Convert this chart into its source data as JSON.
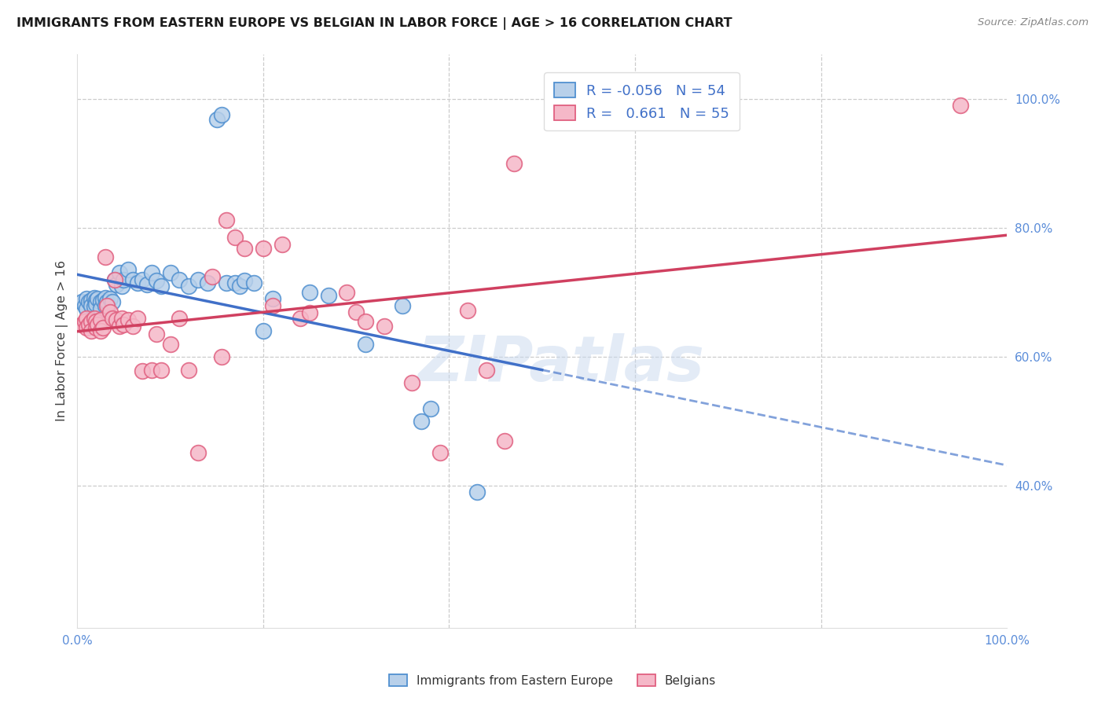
{
  "title": "IMMIGRANTS FROM EASTERN EUROPE VS BELGIAN IN LABOR FORCE | AGE > 16 CORRELATION CHART",
  "source": "Source: ZipAtlas.com",
  "ylabel": "In Labor Force | Age > 16",
  "xlim": [
    0.0,
    1.0
  ],
  "ylim": [
    0.18,
    1.07
  ],
  "xtick_positions": [
    0.0,
    0.2,
    0.4,
    0.6,
    0.8,
    1.0
  ],
  "xticklabels": [
    "0.0%",
    "",
    "",
    "",
    "",
    "100.0%"
  ],
  "right_yticks": [
    0.4,
    0.6,
    0.8,
    1.0
  ],
  "right_yticklabels": [
    "40.0%",
    "60.0%",
    "80.0%",
    "100.0%"
  ],
  "watermark": "ZIPatlas",
  "legend_blue_r": "-0.056",
  "legend_blue_n": "54",
  "legend_pink_r": "0.661",
  "legend_pink_n": "55",
  "blue_face": "#b8d0ea",
  "pink_face": "#f5b8c8",
  "blue_edge": "#5090d0",
  "pink_edge": "#e06080",
  "blue_line": "#4070c8",
  "pink_line": "#d04060",
  "blue_scatter": [
    [
      0.005,
      0.685
    ],
    [
      0.008,
      0.68
    ],
    [
      0.01,
      0.69
    ],
    [
      0.01,
      0.675
    ],
    [
      0.012,
      0.685
    ],
    [
      0.015,
      0.688
    ],
    [
      0.015,
      0.68
    ],
    [
      0.018,
      0.692
    ],
    [
      0.018,
      0.678
    ],
    [
      0.02,
      0.688
    ],
    [
      0.02,
      0.682
    ],
    [
      0.022,
      0.69
    ],
    [
      0.025,
      0.685
    ],
    [
      0.025,
      0.675
    ],
    [
      0.028,
      0.688
    ],
    [
      0.03,
      0.692
    ],
    [
      0.03,
      0.68
    ],
    [
      0.032,
      0.685
    ],
    [
      0.035,
      0.69
    ],
    [
      0.038,
      0.685
    ],
    [
      0.04,
      0.72
    ],
    [
      0.042,
      0.712
    ],
    [
      0.045,
      0.73
    ],
    [
      0.048,
      0.71
    ],
    [
      0.05,
      0.72
    ],
    [
      0.055,
      0.735
    ],
    [
      0.06,
      0.72
    ],
    [
      0.065,
      0.715
    ],
    [
      0.07,
      0.72
    ],
    [
      0.075,
      0.712
    ],
    [
      0.08,
      0.73
    ],
    [
      0.085,
      0.718
    ],
    [
      0.09,
      0.71
    ],
    [
      0.1,
      0.73
    ],
    [
      0.11,
      0.72
    ],
    [
      0.12,
      0.71
    ],
    [
      0.13,
      0.72
    ],
    [
      0.14,
      0.715
    ],
    [
      0.15,
      0.968
    ],
    [
      0.155,
      0.975
    ],
    [
      0.16,
      0.715
    ],
    [
      0.17,
      0.715
    ],
    [
      0.175,
      0.71
    ],
    [
      0.18,
      0.718
    ],
    [
      0.19,
      0.715
    ],
    [
      0.2,
      0.64
    ],
    [
      0.21,
      0.69
    ],
    [
      0.25,
      0.7
    ],
    [
      0.27,
      0.695
    ],
    [
      0.31,
      0.62
    ],
    [
      0.35,
      0.68
    ],
    [
      0.37,
      0.5
    ],
    [
      0.38,
      0.52
    ],
    [
      0.43,
      0.39
    ]
  ],
  "pink_scatter": [
    [
      0.005,
      0.65
    ],
    [
      0.008,
      0.655
    ],
    [
      0.01,
      0.66
    ],
    [
      0.01,
      0.645
    ],
    [
      0.012,
      0.65
    ],
    [
      0.015,
      0.655
    ],
    [
      0.015,
      0.64
    ],
    [
      0.018,
      0.66
    ],
    [
      0.02,
      0.655
    ],
    [
      0.02,
      0.645
    ],
    [
      0.022,
      0.65
    ],
    [
      0.025,
      0.658
    ],
    [
      0.025,
      0.64
    ],
    [
      0.028,
      0.645
    ],
    [
      0.03,
      0.755
    ],
    [
      0.032,
      0.68
    ],
    [
      0.035,
      0.67
    ],
    [
      0.038,
      0.66
    ],
    [
      0.04,
      0.72
    ],
    [
      0.042,
      0.658
    ],
    [
      0.045,
      0.648
    ],
    [
      0.048,
      0.66
    ],
    [
      0.05,
      0.65
    ],
    [
      0.055,
      0.658
    ],
    [
      0.06,
      0.648
    ],
    [
      0.065,
      0.66
    ],
    [
      0.07,
      0.578
    ],
    [
      0.08,
      0.58
    ],
    [
      0.085,
      0.635
    ],
    [
      0.09,
      0.58
    ],
    [
      0.1,
      0.62
    ],
    [
      0.11,
      0.66
    ],
    [
      0.12,
      0.58
    ],
    [
      0.13,
      0.452
    ],
    [
      0.145,
      0.725
    ],
    [
      0.155,
      0.6
    ],
    [
      0.16,
      0.812
    ],
    [
      0.17,
      0.785
    ],
    [
      0.18,
      0.768
    ],
    [
      0.2,
      0.768
    ],
    [
      0.21,
      0.68
    ],
    [
      0.22,
      0.775
    ],
    [
      0.24,
      0.66
    ],
    [
      0.25,
      0.668
    ],
    [
      0.29,
      0.7
    ],
    [
      0.3,
      0.67
    ],
    [
      0.31,
      0.655
    ],
    [
      0.33,
      0.648
    ],
    [
      0.36,
      0.56
    ],
    [
      0.39,
      0.452
    ],
    [
      0.42,
      0.672
    ],
    [
      0.44,
      0.58
    ],
    [
      0.46,
      0.47
    ],
    [
      0.47,
      0.9
    ],
    [
      0.95,
      0.99
    ]
  ]
}
